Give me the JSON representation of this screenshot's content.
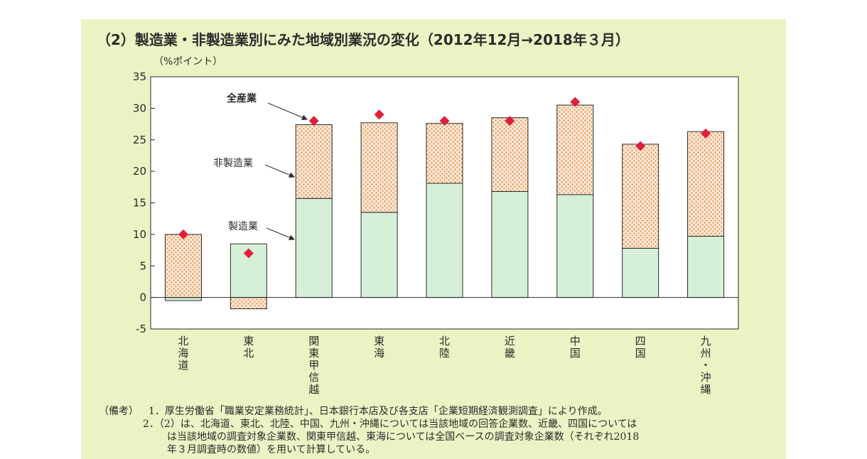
{
  "title": "（2）製造業・非製造業別にみた地域別業況の変化（2012年12月→2018年３月）",
  "unit_label": "（%ポイント）",
  "chart_data": {
    "type": "bar",
    "stacked": true,
    "categories": [
      "北海道",
      "東北",
      "関東甲信越",
      "東海",
      "北陸",
      "近畿",
      "中国",
      "四国",
      "九州・沖縄"
    ],
    "category_labels": [
      [
        "北",
        "海",
        "道"
      ],
      [
        "東",
        "北"
      ],
      [
        "関",
        "東",
        "甲",
        "信",
        "越"
      ],
      [
        "東",
        "海"
      ],
      [
        "北",
        "陸"
      ],
      [
        "近",
        "畿"
      ],
      [
        "中",
        "国"
      ],
      [
        "四",
        "国"
      ],
      [
        "九",
        "州",
        "・",
        "沖",
        "縄"
      ]
    ],
    "series": [
      {
        "name": "製造業",
        "values": [
          -0.5,
          8.5,
          15.7,
          13.5,
          18.1,
          16.8,
          16.3,
          7.8,
          9.7
        ]
      },
      {
        "name": "非製造業",
        "values": [
          10.0,
          -1.8,
          11.7,
          14.2,
          9.5,
          11.7,
          14.2,
          16.5,
          16.6
        ]
      }
    ],
    "overall_name": "全産業",
    "overall": [
      10.0,
      7.0,
      28.0,
      29.0,
      28.0,
      28.0,
      31.0,
      24.0,
      26.0
    ],
    "y_ticks": [
      "35",
      "30",
      "25",
      "20",
      "15",
      "10",
      "5",
      "0",
      "-5"
    ],
    "ylim": [
      -5,
      35
    ],
    "annotation_labels": [
      "全産業",
      "非製造業",
      "製造業"
    ],
    "colors": {
      "manufacturing": "#d5f0d6",
      "nonmanufacturing_bg": "#fbe8d8",
      "nonmanufacturing_dot": "#e4883a",
      "overall": "#e0203a",
      "panel": "#e9f3c4"
    }
  },
  "notes": {
    "prefix": "（備考）",
    "items": [
      {
        "num": "1．",
        "lines": [
          "厚生労働省「職業安定業務統計」、日本銀行本店及び各支店「企業短期経済観測調査」により作成。"
        ]
      },
      {
        "num": "2．",
        "lines": [
          "（2）は、北海道、東北、北陸、中国、九州・沖縄については当該地域の回答企業数、近畿、四国については",
          "は当該地域の調査対象企業数、関東甲信越、東海については全国ベースの調査対象企業数（それぞれ2018",
          "年３月調査時の数値）を用いて計算している。"
        ]
      }
    ]
  }
}
